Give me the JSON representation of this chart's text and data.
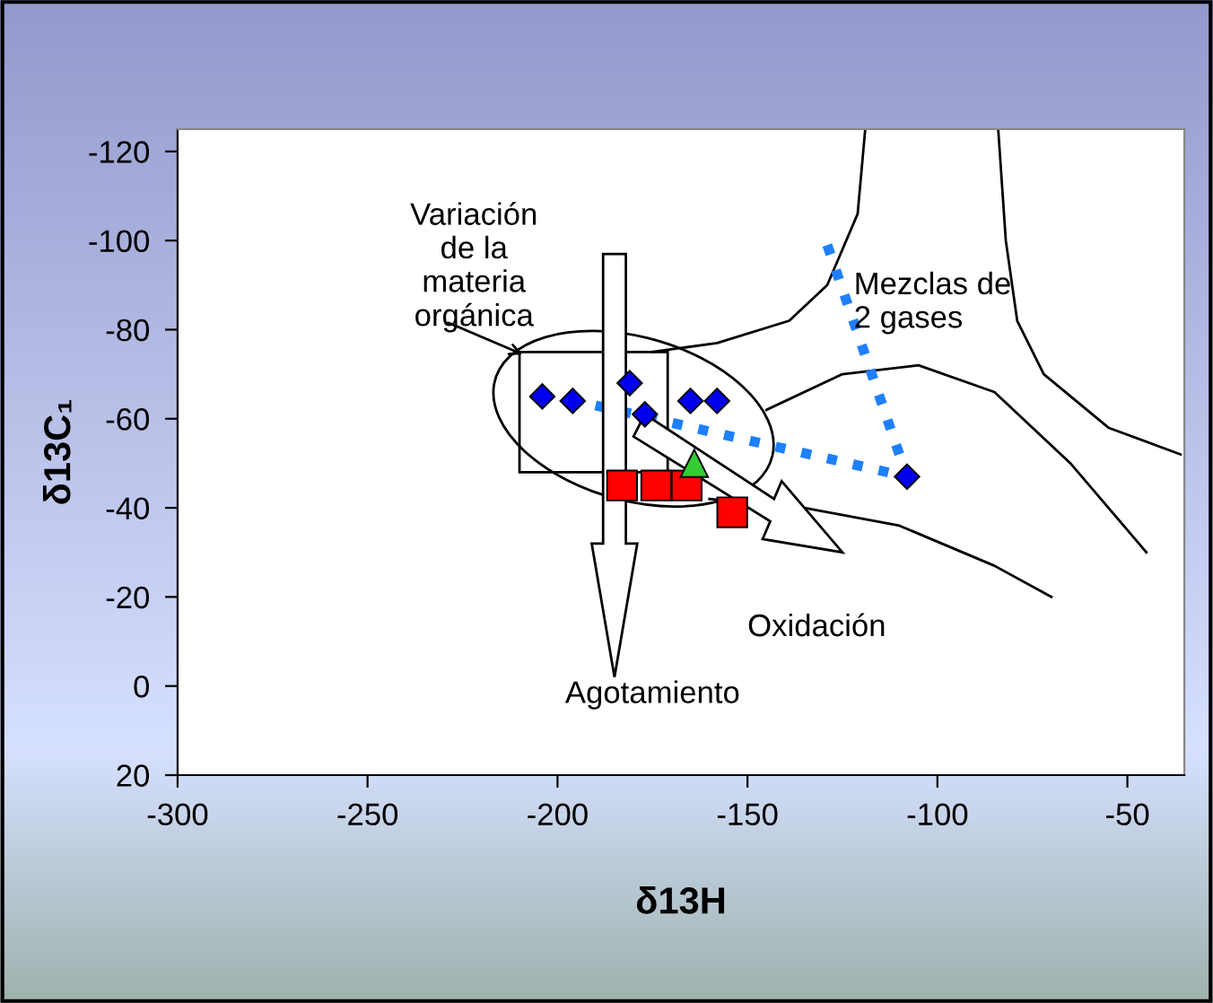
{
  "chart_data": {
    "type": "scatter",
    "xlabel": "δ13H",
    "ylabel": "δ13C₁",
    "xlim": [
      -300,
      -35
    ],
    "ylim": [
      20,
      -125
    ],
    "xticks": [
      -300,
      -250,
      -200,
      -150,
      -100,
      -50
    ],
    "yticks": [
      -120,
      -100,
      -80,
      -60,
      -40,
      -20,
      0,
      20
    ],
    "grid": false,
    "legend": false,
    "series": [
      {
        "type": "line",
        "color": "#000000",
        "marker": "none",
        "line_style": "solid",
        "x": [
          -119,
          -121,
          -129,
          -139,
          -158,
          -175
        ],
        "values": [
          -125,
          -106,
          -90,
          -82,
          -77,
          -75
        ]
      },
      {
        "type": "line",
        "color": "#000000",
        "marker": "none",
        "line_style": "solid",
        "x": [
          -84,
          -82,
          -79,
          -72,
          -55,
          -36
        ],
        "values": [
          -125,
          -100,
          -82,
          -70,
          -58,
          -52
        ]
      },
      {
        "type": "line",
        "color": "#000000",
        "marker": "none",
        "line_style": "solid",
        "x": [
          -145,
          -125,
          -105,
          -85,
          -65,
          -45
        ],
        "values": [
          -62,
          -70,
          -72,
          -66,
          -50,
          -30
        ]
      },
      {
        "type": "line",
        "color": "#000000",
        "marker": "none",
        "line_style": "solid",
        "x": [
          -160,
          -135,
          -110,
          -85,
          -70
        ],
        "values": [
          -42,
          -40,
          -36,
          -27,
          -20
        ]
      },
      {
        "type": "line",
        "color": "#1e7fff",
        "marker": "none",
        "line_style": "dotted",
        "x": [
          -129,
          -108,
          -190
        ],
        "values": [
          -99,
          -47,
          -63
        ]
      },
      {
        "color": "#0000ee",
        "marker": "diamond",
        "x": [
          -204,
          -196,
          -181,
          -177,
          -165,
          -158,
          -108
        ],
        "values": [
          -65,
          -64,
          -68,
          -61,
          -64,
          -64,
          -47
        ]
      },
      {
        "color": "#ff0000",
        "marker": "square",
        "x": [
          -183,
          -174,
          -166,
          -154
        ],
        "values": [
          -45,
          -45,
          -45,
          -39
        ]
      },
      {
        "color": "#33cc33",
        "marker": "triangle",
        "x": [
          -164
        ],
        "values": [
          -50
        ]
      }
    ],
    "annotations": [
      "Variación\nde la\nmateria\norgánica",
      "Mezclas de\n2 gases",
      "Oxidación",
      "Agotamiento"
    ]
  }
}
